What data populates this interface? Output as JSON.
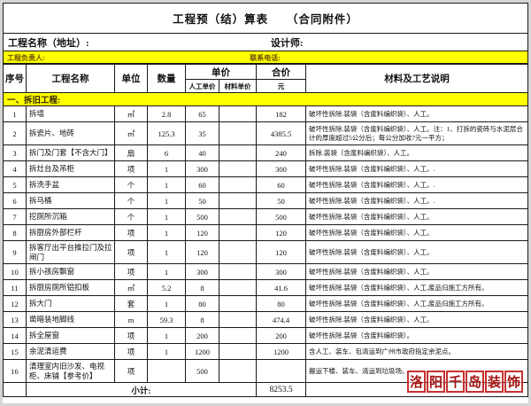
{
  "title": "工程预（结）算表　　（合同附件）",
  "info": {
    "project_name_label": "工程名称（地址）:",
    "designer_label": "设计师:"
  },
  "contact": {
    "manager_label": "工程负责人:",
    "phone_label": "联系电话:"
  },
  "columns": {
    "no": "序号",
    "name": "工程名称",
    "unit": "单位",
    "qty": "数量",
    "unit_price": "单价",
    "labor": "人工单价",
    "material": "材料单价",
    "total": "合价",
    "total_unit": "元",
    "note": "材料及工艺说明"
  },
  "section_title": "一、拆旧工程:",
  "table": {
    "rows": [
      {
        "no": "1",
        "name": "拆墙",
        "unit": "㎡",
        "qty": "2.8",
        "labor": "65",
        "material": "",
        "total": "182",
        "note": "破坏性拆除.装袋（含废料编织袋）、人工。",
        "tall": false
      },
      {
        "no": "2",
        "name": "拆瓷片、地砖",
        "unit": "㎡",
        "qty": "125.3",
        "labor": "35",
        "material": "",
        "total": "4385.5",
        "note": "破坏性拆除.装袋（含废料编织袋）、人工。注：1、打拆的瓷砖与水泥层合计的厚度超过5公分后；每公分加收7元一平方；",
        "tall": true
      },
      {
        "no": "3",
        "name": "拆门及门套【不含大门】",
        "unit": "扇",
        "qty": "6",
        "labor": "40",
        "material": "",
        "total": "240",
        "note": "拆除.装袋（含废料编织袋）、人工。",
        "tall": false
      },
      {
        "no": "4",
        "name": "拆灶台及吊柜",
        "unit": "项",
        "qty": "1",
        "labor": "300",
        "material": "",
        "total": "300",
        "note": "破坏性拆除.装袋（含废料编织袋）、人工。.",
        "tall": false
      },
      {
        "no": "5",
        "name": "拆洗手盆",
        "unit": "个",
        "qty": "1",
        "labor": "60",
        "material": "",
        "total": "60",
        "note": "破坏性拆除.装袋（含废料编织袋）、人工。.",
        "tall": false
      },
      {
        "no": "6",
        "name": "拆马桶",
        "unit": "个",
        "qty": "1",
        "labor": "50",
        "material": "",
        "total": "50",
        "note": "破坏性拆除.装袋（含废料编织袋）、人工。.",
        "tall": false
      },
      {
        "no": "7",
        "name": "挖厕所沉箱",
        "unit": "个",
        "qty": "1",
        "labor": "500",
        "material": "",
        "total": "500",
        "note": "破坏性拆除.装袋（含废料编织袋）、人工。",
        "tall": false
      },
      {
        "no": "8",
        "name": "拆厨房外部栏杆",
        "unit": "项",
        "qty": "1",
        "labor": "120",
        "material": "",
        "total": "120",
        "note": "破坏性拆除.装袋（含废料编织袋）、人工。",
        "tall": false
      },
      {
        "no": "9",
        "name": "拆客厅出平台推拉门及拉闸门",
        "unit": "项",
        "qty": "1",
        "labor": "120",
        "material": "",
        "total": "120",
        "note": "破坏性拆除.装袋（含废料编织袋）、人工。",
        "tall": true
      },
      {
        "no": "10",
        "name": "拆小孩房飘窗",
        "unit": "项",
        "qty": "1",
        "labor": "300",
        "material": "",
        "total": "300",
        "note": "破坏性拆除.装袋（含废料编织袋）、人工。",
        "tall": false
      },
      {
        "no": "11",
        "name": "拆厨房厕所铝扣板",
        "unit": "㎡",
        "qty": "5.2",
        "labor": "8",
        "material": "",
        "total": "41.6",
        "note": "破坏性拆除.装袋（含废料编织袋）、人工,废品归施工方所有。",
        "tall": false
      },
      {
        "no": "12",
        "name": "拆大门",
        "unit": "套",
        "qty": "1",
        "labor": "80",
        "material": "",
        "total": "80",
        "note": "破坏性拆除.装袋（含废料编织袋）、人工,废品归施工方所有。",
        "tall": false
      },
      {
        "no": "13",
        "name": "凿暗装地脚线",
        "unit": "m",
        "qty": "59.3",
        "labor": "8",
        "material": "",
        "total": "474.4",
        "note": "破坏性拆除.装袋（含废料编织袋）、人工。",
        "tall": false
      },
      {
        "no": "14",
        "name": "拆全屋窗",
        "unit": "项",
        "qty": "1",
        "labor": "200",
        "material": "",
        "total": "200",
        "note": "破坏性拆除.装袋（含废料编织袋）。",
        "tall": false
      },
      {
        "no": "15",
        "name": "余泥清运费",
        "unit": "项",
        "qty": "1",
        "labor": "1200",
        "material": "",
        "total": "1200",
        "note": "含人工、装车、包清运到广州市政府指定余泥点。",
        "tall": false
      },
      {
        "no": "16",
        "name": "清理室内旧沙发、电视柜、床铺【参考价】",
        "unit": "项",
        "qty": "",
        "labor": "500",
        "material": "",
        "total": "",
        "note": "搬运下楼、装车、清运到垃圾场。",
        "tall": true
      }
    ],
    "subtotal_label": "小计:",
    "subtotal_value": "8253.5"
  },
  "watermark": "洛阳千岛装饰",
  "colors": {
    "highlight_yellow": "#ffff00",
    "watermark_red": "#a51414",
    "border_black": "#1a1a1a"
  }
}
